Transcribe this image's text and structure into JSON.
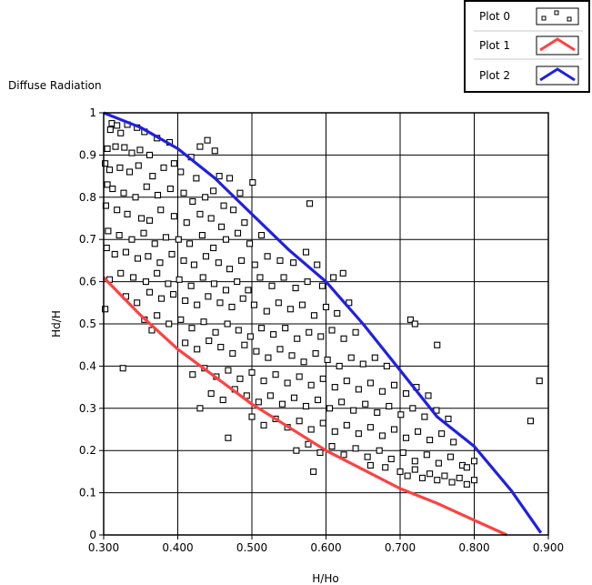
{
  "chart_data": {
    "type": "scatter",
    "title": "Diffuse Radiation",
    "xlabel": "H/Ho",
    "ylabel": "Hd/H",
    "xlim": [
      0.3,
      0.9
    ],
    "ylim": [
      0,
      1
    ],
    "x_ticks": [
      "0.300",
      "0.400",
      "0.500",
      "0.600",
      "0.700",
      "0.800",
      "0.900"
    ],
    "y_ticks": [
      "0",
      "0.1",
      "0.2",
      "0.3",
      "0.4",
      "0.5",
      "0.6",
      "0.7",
      "0.8",
      "0.9",
      "1"
    ],
    "grid": true,
    "legend_position": "top-right",
    "colors": {
      "plot0": "#000000",
      "plot1": "#ff4040",
      "plot2": "#2020e0"
    },
    "series": [
      {
        "name": "Plot 0",
        "marker": "square",
        "points": [
          [
            0.311,
            0.975
          ],
          [
            0.318,
            0.97
          ],
          [
            0.332,
            0.972
          ],
          [
            0.345,
            0.965
          ],
          [
            0.355,
            0.955
          ],
          [
            0.309,
            0.96
          ],
          [
            0.323,
            0.952
          ],
          [
            0.372,
            0.94
          ],
          [
            0.305,
            0.915
          ],
          [
            0.316,
            0.92
          ],
          [
            0.328,
            0.918
          ],
          [
            0.338,
            0.905
          ],
          [
            0.349,
            0.912
          ],
          [
            0.362,
            0.9
          ],
          [
            0.389,
            0.93
          ],
          [
            0.44,
            0.935
          ],
          [
            0.43,
            0.92
          ],
          [
            0.45,
            0.91
          ],
          [
            0.418,
            0.895
          ],
          [
            0.395,
            0.88
          ],
          [
            0.302,
            0.88
          ],
          [
            0.308,
            0.865
          ],
          [
            0.322,
            0.87
          ],
          [
            0.335,
            0.86
          ],
          [
            0.347,
            0.875
          ],
          [
            0.366,
            0.85
          ],
          [
            0.381,
            0.87
          ],
          [
            0.404,
            0.86
          ],
          [
            0.425,
            0.845
          ],
          [
            0.456,
            0.85
          ],
          [
            0.47,
            0.845
          ],
          [
            0.305,
            0.83
          ],
          [
            0.312,
            0.82
          ],
          [
            0.327,
            0.81
          ],
          [
            0.343,
            0.8
          ],
          [
            0.358,
            0.825
          ],
          [
            0.373,
            0.805
          ],
          [
            0.39,
            0.82
          ],
          [
            0.408,
            0.81
          ],
          [
            0.42,
            0.79
          ],
          [
            0.437,
            0.8
          ],
          [
            0.448,
            0.815
          ],
          [
            0.462,
            0.78
          ],
          [
            0.484,
            0.81
          ],
          [
            0.501,
            0.835
          ],
          [
            0.578,
            0.785
          ],
          [
            0.303,
            0.78
          ],
          [
            0.318,
            0.77
          ],
          [
            0.332,
            0.76
          ],
          [
            0.351,
            0.75
          ],
          [
            0.362,
            0.745
          ],
          [
            0.377,
            0.77
          ],
          [
            0.395,
            0.755
          ],
          [
            0.412,
            0.74
          ],
          [
            0.43,
            0.76
          ],
          [
            0.445,
            0.75
          ],
          [
            0.459,
            0.73
          ],
          [
            0.475,
            0.77
          ],
          [
            0.49,
            0.74
          ],
          [
            0.306,
            0.72
          ],
          [
            0.321,
            0.71
          ],
          [
            0.338,
            0.7
          ],
          [
            0.354,
            0.715
          ],
          [
            0.369,
            0.69
          ],
          [
            0.384,
            0.705
          ],
          [
            0.401,
            0.7
          ],
          [
            0.416,
            0.69
          ],
          [
            0.433,
            0.71
          ],
          [
            0.448,
            0.68
          ],
          [
            0.465,
            0.7
          ],
          [
            0.481,
            0.715
          ],
          [
            0.497,
            0.69
          ],
          [
            0.513,
            0.71
          ],
          [
            0.304,
            0.68
          ],
          [
            0.315,
            0.665
          ],
          [
            0.33,
            0.67
          ],
          [
            0.346,
            0.655
          ],
          [
            0.36,
            0.66
          ],
          [
            0.376,
            0.645
          ],
          [
            0.392,
            0.665
          ],
          [
            0.408,
            0.65
          ],
          [
            0.422,
            0.64
          ],
          [
            0.438,
            0.66
          ],
          [
            0.455,
            0.645
          ],
          [
            0.47,
            0.63
          ],
          [
            0.486,
            0.65
          ],
          [
            0.504,
            0.64
          ],
          [
            0.521,
            0.66
          ],
          [
            0.538,
            0.65
          ],
          [
            0.556,
            0.645
          ],
          [
            0.573,
            0.67
          ],
          [
            0.588,
            0.64
          ],
          [
            0.308,
            0.605
          ],
          [
            0.323,
            0.62
          ],
          [
            0.34,
            0.61
          ],
          [
            0.357,
            0.6
          ],
          [
            0.372,
            0.62
          ],
          [
            0.387,
            0.595
          ],
          [
            0.402,
            0.605
          ],
          [
            0.418,
            0.59
          ],
          [
            0.434,
            0.61
          ],
          [
            0.449,
            0.595
          ],
          [
            0.465,
            0.58
          ],
          [
            0.48,
            0.6
          ],
          [
            0.495,
            0.58
          ],
          [
            0.511,
            0.61
          ],
          [
            0.527,
            0.59
          ],
          [
            0.543,
            0.61
          ],
          [
            0.559,
            0.585
          ],
          [
            0.575,
            0.6
          ],
          [
            0.595,
            0.59
          ],
          [
            0.61,
            0.61
          ],
          [
            0.623,
            0.62
          ],
          [
            0.302,
            0.535
          ],
          [
            0.33,
            0.565
          ],
          [
            0.345,
            0.55
          ],
          [
            0.362,
            0.575
          ],
          [
            0.378,
            0.56
          ],
          [
            0.394,
            0.57
          ],
          [
            0.41,
            0.555
          ],
          [
            0.426,
            0.545
          ],
          [
            0.441,
            0.565
          ],
          [
            0.457,
            0.55
          ],
          [
            0.473,
            0.54
          ],
          [
            0.488,
            0.56
          ],
          [
            0.503,
            0.545
          ],
          [
            0.52,
            0.53
          ],
          [
            0.536,
            0.55
          ],
          [
            0.552,
            0.535
          ],
          [
            0.568,
            0.545
          ],
          [
            0.584,
            0.52
          ],
          [
            0.6,
            0.54
          ],
          [
            0.615,
            0.525
          ],
          [
            0.631,
            0.55
          ],
          [
            0.355,
            0.51
          ],
          [
            0.372,
            0.52
          ],
          [
            0.388,
            0.5
          ],
          [
            0.404,
            0.51
          ],
          [
            0.419,
            0.49
          ],
          [
            0.435,
            0.505
          ],
          [
            0.451,
            0.48
          ],
          [
            0.467,
            0.5
          ],
          [
            0.482,
            0.485
          ],
          [
            0.498,
            0.47
          ],
          [
            0.513,
            0.49
          ],
          [
            0.529,
            0.475
          ],
          [
            0.545,
            0.49
          ],
          [
            0.561,
            0.465
          ],
          [
            0.577,
            0.48
          ],
          [
            0.593,
            0.47
          ],
          [
            0.608,
            0.485
          ],
          [
            0.624,
            0.465
          ],
          [
            0.64,
            0.48
          ],
          [
            0.714,
            0.51
          ],
          [
            0.72,
            0.5
          ],
          [
            0.365,
            0.485
          ],
          [
            0.41,
            0.455
          ],
          [
            0.426,
            0.44
          ],
          [
            0.442,
            0.46
          ],
          [
            0.458,
            0.445
          ],
          [
            0.474,
            0.43
          ],
          [
            0.49,
            0.45
          ],
          [
            0.506,
            0.435
          ],
          [
            0.522,
            0.42
          ],
          [
            0.538,
            0.44
          ],
          [
            0.554,
            0.425
          ],
          [
            0.57,
            0.41
          ],
          [
            0.586,
            0.43
          ],
          [
            0.602,
            0.415
          ],
          [
            0.618,
            0.4
          ],
          [
            0.634,
            0.42
          ],
          [
            0.65,
            0.405
          ],
          [
            0.666,
            0.42
          ],
          [
            0.682,
            0.4
          ],
          [
            0.75,
            0.45
          ],
          [
            0.326,
            0.395
          ],
          [
            0.42,
            0.38
          ],
          [
            0.436,
            0.395
          ],
          [
            0.452,
            0.375
          ],
          [
            0.468,
            0.39
          ],
          [
            0.484,
            0.37
          ],
          [
            0.5,
            0.385
          ],
          [
            0.516,
            0.365
          ],
          [
            0.532,
            0.38
          ],
          [
            0.548,
            0.36
          ],
          [
            0.564,
            0.375
          ],
          [
            0.58,
            0.355
          ],
          [
            0.596,
            0.37
          ],
          [
            0.612,
            0.35
          ],
          [
            0.628,
            0.365
          ],
          [
            0.644,
            0.345
          ],
          [
            0.66,
            0.36
          ],
          [
            0.676,
            0.34
          ],
          [
            0.692,
            0.355
          ],
          [
            0.708,
            0.335
          ],
          [
            0.722,
            0.35
          ],
          [
            0.738,
            0.33
          ],
          [
            0.43,
            0.3
          ],
          [
            0.445,
            0.335
          ],
          [
            0.461,
            0.32
          ],
          [
            0.477,
            0.345
          ],
          [
            0.493,
            0.33
          ],
          [
            0.509,
            0.315
          ],
          [
            0.525,
            0.33
          ],
          [
            0.541,
            0.31
          ],
          [
            0.557,
            0.325
          ],
          [
            0.573,
            0.305
          ],
          [
            0.589,
            0.32
          ],
          [
            0.605,
            0.3
          ],
          [
            0.621,
            0.315
          ],
          [
            0.637,
            0.295
          ],
          [
            0.653,
            0.31
          ],
          [
            0.669,
            0.29
          ],
          [
            0.685,
            0.305
          ],
          [
            0.701,
            0.285
          ],
          [
            0.717,
            0.3
          ],
          [
            0.733,
            0.28
          ],
          [
            0.749,
            0.295
          ],
          [
            0.765,
            0.275
          ],
          [
            0.468,
            0.23
          ],
          [
            0.5,
            0.28
          ],
          [
            0.516,
            0.26
          ],
          [
            0.532,
            0.275
          ],
          [
            0.548,
            0.255
          ],
          [
            0.564,
            0.27
          ],
          [
            0.58,
            0.25
          ],
          [
            0.596,
            0.265
          ],
          [
            0.612,
            0.245
          ],
          [
            0.628,
            0.26
          ],
          [
            0.644,
            0.24
          ],
          [
            0.66,
            0.255
          ],
          [
            0.676,
            0.235
          ],
          [
            0.692,
            0.25
          ],
          [
            0.708,
            0.23
          ],
          [
            0.724,
            0.245
          ],
          [
            0.74,
            0.225
          ],
          [
            0.756,
            0.24
          ],
          [
            0.772,
            0.22
          ],
          [
            0.56,
            0.2
          ],
          [
            0.576,
            0.215
          ],
          [
            0.592,
            0.195
          ],
          [
            0.608,
            0.21
          ],
          [
            0.624,
            0.19
          ],
          [
            0.64,
            0.205
          ],
          [
            0.656,
            0.185
          ],
          [
            0.672,
            0.2
          ],
          [
            0.688,
            0.18
          ],
          [
            0.704,
            0.195
          ],
          [
            0.72,
            0.175
          ],
          [
            0.736,
            0.19
          ],
          [
            0.752,
            0.17
          ],
          [
            0.768,
            0.185
          ],
          [
            0.784,
            0.165
          ],
          [
            0.8,
            0.175
          ],
          [
            0.583,
            0.15
          ],
          [
            0.66,
            0.165
          ],
          [
            0.68,
            0.16
          ],
          [
            0.7,
            0.15
          ],
          [
            0.71,
            0.14
          ],
          [
            0.72,
            0.155
          ],
          [
            0.73,
            0.135
          ],
          [
            0.74,
            0.145
          ],
          [
            0.75,
            0.13
          ],
          [
            0.76,
            0.14
          ],
          [
            0.77,
            0.125
          ],
          [
            0.78,
            0.135
          ],
          [
            0.79,
            0.12
          ],
          [
            0.8,
            0.13
          ],
          [
            0.79,
            0.16
          ],
          [
            0.876,
            0.27
          ],
          [
            0.888,
            0.365
          ]
        ]
      },
      {
        "name": "Plot 1",
        "marker": "line",
        "points": [
          [
            0.3,
            0.61
          ],
          [
            0.35,
            0.52
          ],
          [
            0.4,
            0.44
          ],
          [
            0.45,
            0.375
          ],
          [
            0.5,
            0.31
          ],
          [
            0.55,
            0.255
          ],
          [
            0.6,
            0.2
          ],
          [
            0.65,
            0.155
          ],
          [
            0.7,
            0.11
          ],
          [
            0.75,
            0.075
          ],
          [
            0.8,
            0.035
          ],
          [
            0.844,
            0.0
          ]
        ]
      },
      {
        "name": "Plot 2",
        "marker": "line",
        "points": [
          [
            0.3,
            1.0
          ],
          [
            0.35,
            0.965
          ],
          [
            0.4,
            0.915
          ],
          [
            0.45,
            0.845
          ],
          [
            0.5,
            0.76
          ],
          [
            0.55,
            0.675
          ],
          [
            0.6,
            0.6
          ],
          [
            0.65,
            0.5
          ],
          [
            0.7,
            0.39
          ],
          [
            0.75,
            0.28
          ],
          [
            0.8,
            0.21
          ],
          [
            0.85,
            0.105
          ],
          [
            0.89,
            0.005
          ]
        ]
      }
    ]
  }
}
